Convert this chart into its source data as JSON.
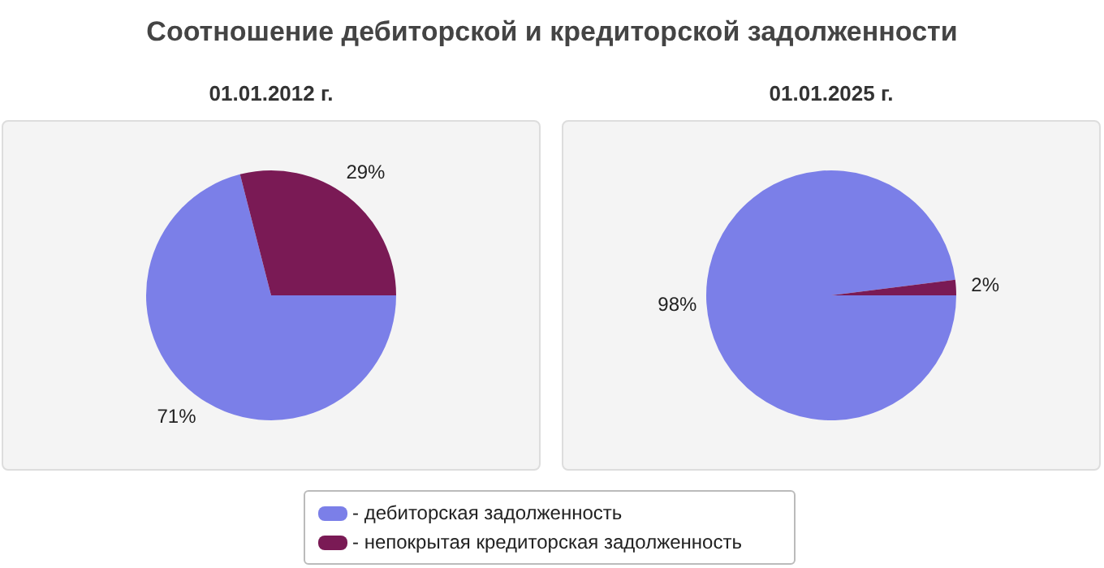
{
  "chart_data": [
    {
      "type": "pie",
      "title": "Соотношение дебиторской и кредиторской задолженности",
      "subtitle": "01.01.2012 г.",
      "categories": [
        "- дебиторская задолженность",
        "- непокрытая кредиторская задолженность"
      ],
      "values": [
        71,
        29
      ],
      "colors": [
        "#7b7fe8",
        "#7a1a55"
      ],
      "value_labels": [
        "71%",
        "29%"
      ],
      "legend": "bottom"
    },
    {
      "type": "pie",
      "subtitle": "01.01.2025 г.",
      "categories": [
        null,
        null
      ],
      "values": [
        98,
        2
      ],
      "colors": [
        "#7b7fe8",
        "#7a1a55"
      ],
      "value_labels": [
        "98%",
        "2%"
      ]
    }
  ]
}
